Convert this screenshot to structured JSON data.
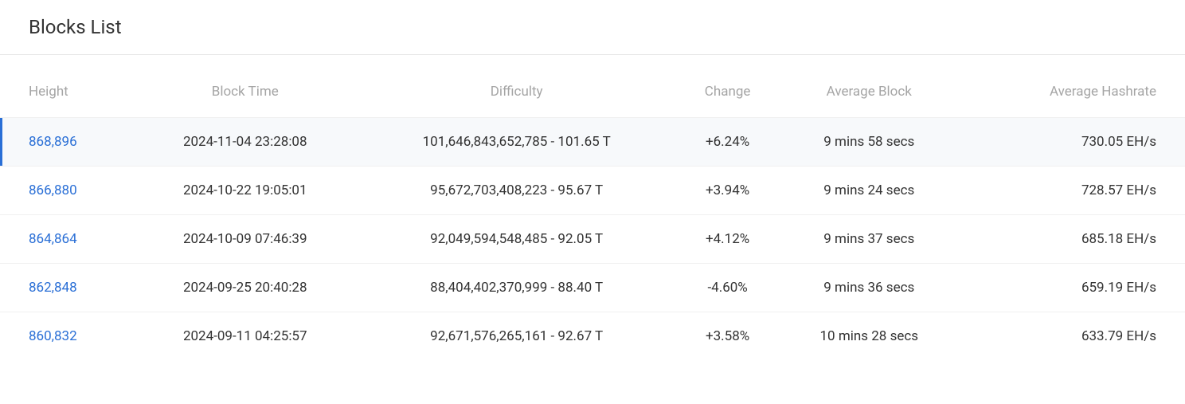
{
  "title": "Blocks List",
  "colors": {
    "link": "#2a6fd6",
    "positive": "#27ae60",
    "negative": "#e74c3c",
    "header_text": "#a5a5a5",
    "body_text": "#333333",
    "row_highlight_bg": "#f7f9fb",
    "row_border": "#f0f0f0",
    "accent_bar": "#2a6fd6"
  },
  "columns": [
    "Height",
    "Block Time",
    "Difficulty",
    "Change",
    "Average Block",
    "Average Hashrate"
  ],
  "rows": [
    {
      "height": "868,896",
      "block_time": "2024-11-04 23:28:08",
      "difficulty": "101,646,843,652,785 - 101.65 T",
      "change": "+6.24%",
      "change_direction": "positive",
      "avg_block": "9 mins 58 secs",
      "avg_hashrate": "730.05 EH/s",
      "highlighted": true
    },
    {
      "height": "866,880",
      "block_time": "2024-10-22 19:05:01",
      "difficulty": "95,672,703,408,223 - 95.67 T",
      "change": "+3.94%",
      "change_direction": "positive",
      "avg_block": "9 mins 24 secs",
      "avg_hashrate": "728.57 EH/s",
      "highlighted": false
    },
    {
      "height": "864,864",
      "block_time": "2024-10-09 07:46:39",
      "difficulty": "92,049,594,548,485 - 92.05 T",
      "change": "+4.12%",
      "change_direction": "positive",
      "avg_block": "9 mins 37 secs",
      "avg_hashrate": "685.18 EH/s",
      "highlighted": false
    },
    {
      "height": "862,848",
      "block_time": "2024-09-25 20:40:28",
      "difficulty": "88,404,402,370,999 - 88.40 T",
      "change": "-4.60%",
      "change_direction": "negative",
      "avg_block": "9 mins 36 secs",
      "avg_hashrate": "659.19 EH/s",
      "highlighted": false
    },
    {
      "height": "860,832",
      "block_time": "2024-09-11 04:25:57",
      "difficulty": "92,671,576,265,161 - 92.67 T",
      "change": "+3.58%",
      "change_direction": "positive",
      "avg_block": "10 mins 28 secs",
      "avg_hashrate": "633.79 EH/s",
      "highlighted": false
    }
  ]
}
